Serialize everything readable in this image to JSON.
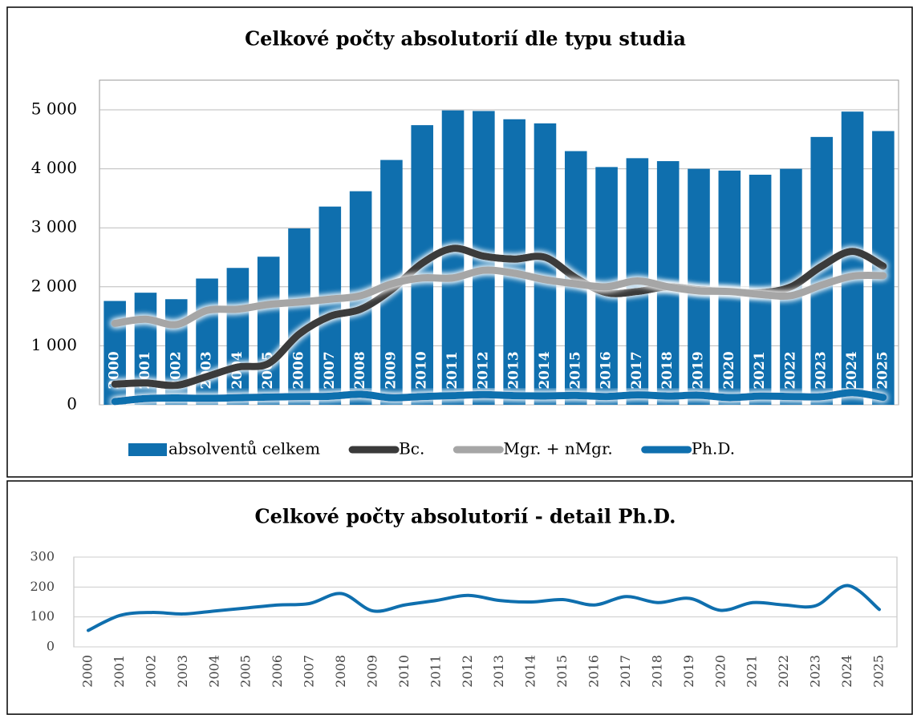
{
  "chart_data": [
    {
      "type": "bar",
      "title": "Celkové počty absolutorií dle typu studia",
      "categories": [
        "2000",
        "2001",
        "2002",
        "2003",
        "2004",
        "2005",
        "2006",
        "2007",
        "2008",
        "2009",
        "2010",
        "2011",
        "2012",
        "2013",
        "2014",
        "2015",
        "2016",
        "2017",
        "2018",
        "2019",
        "2020",
        "2021",
        "2022",
        "2023",
        "2024",
        "2025"
      ],
      "series": [
        {
          "name": "absolventů celkem",
          "type": "bar",
          "color": "#0f6fae",
          "values": [
            1760,
            1900,
            1790,
            2140,
            2320,
            2510,
            2990,
            3360,
            3620,
            4150,
            4740,
            4990,
            4980,
            4840,
            4770,
            4300,
            4030,
            4180,
            4130,
            4000,
            3970,
            3900,
            4000,
            4540,
            4970,
            4640
          ]
        },
        {
          "name": "Bc.",
          "type": "line",
          "color": "#3a3a3a",
          "values": [
            350,
            370,
            330,
            480,
            640,
            700,
            1200,
            1500,
            1620,
            1950,
            2400,
            2650,
            2520,
            2470,
            2500,
            2150,
            1900,
            1920,
            2000,
            1950,
            1920,
            1900,
            2000,
            2350,
            2600,
            2350
          ]
        },
        {
          "name": "Mgr. + nMgr.",
          "type": "line",
          "color": "#a6a6a6",
          "values": [
            1380,
            1450,
            1360,
            1600,
            1620,
            1700,
            1740,
            1790,
            1850,
            2050,
            2150,
            2150,
            2280,
            2230,
            2120,
            2050,
            2000,
            2100,
            2000,
            1930,
            1920,
            1870,
            1850,
            2030,
            2180,
            2190
          ]
        },
        {
          "name": "Ph.D.",
          "type": "line",
          "color": "#0f6fae",
          "values": [
            55,
            105,
            115,
            110,
            120,
            130,
            140,
            145,
            178,
            120,
            140,
            155,
            172,
            155,
            150,
            158,
            140,
            168,
            148,
            162,
            122,
            148,
            140,
            138,
            205,
            125
          ]
        }
      ],
      "ylim": [
        0,
        5000
      ],
      "yticks": [
        0,
        {
          "value": 1000,
          "label": "1 000"
        },
        {
          "value": 2000,
          "label": "2 000"
        },
        {
          "value": 3000,
          "label": "3 000"
        },
        {
          "value": 4000,
          "label": "4 000"
        },
        {
          "value": 5000,
          "label": "5 000"
        }
      ],
      "grid": true,
      "legend": "bottom"
    },
    {
      "type": "line",
      "title": "Celkové počty absolutorií - detail Ph.D.",
      "categories": [
        "2000",
        "2001",
        "2002",
        "2003",
        "2004",
        "2005",
        "2006",
        "2007",
        "2008",
        "2009",
        "2010",
        "2011",
        "2012",
        "2013",
        "2014",
        "2015",
        "2016",
        "2017",
        "2018",
        "2019",
        "2020",
        "2021",
        "2022",
        "2023",
        "2024",
        "2025"
      ],
      "values": [
        55,
        105,
        115,
        110,
        120,
        130,
        140,
        145,
        178,
        120,
        140,
        155,
        172,
        155,
        150,
        158,
        140,
        168,
        148,
        162,
        122,
        148,
        140,
        138,
        205,
        125
      ],
      "color": "#0f6fae",
      "ylim": [
        0,
        300
      ],
      "yticks": [
        0,
        100,
        200,
        300
      ],
      "grid": true
    }
  ]
}
